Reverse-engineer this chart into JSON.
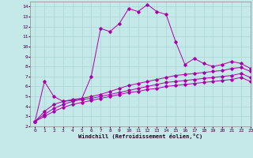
{
  "xlabel": "Windchill (Refroidissement éolien,°C)",
  "bg_color": "#c5e8e8",
  "grid_color": "#b0d8d8",
  "line_color": "#aa00aa",
  "xlim": [
    -0.5,
    23
  ],
  "ylim": [
    2,
    14.5
  ],
  "xticks": [
    0,
    1,
    2,
    3,
    4,
    5,
    6,
    7,
    8,
    9,
    10,
    11,
    12,
    13,
    14,
    15,
    16,
    17,
    18,
    19,
    20,
    21,
    22,
    23
  ],
  "yticks": [
    2,
    3,
    4,
    5,
    6,
    7,
    8,
    9,
    10,
    11,
    12,
    13,
    14
  ],
  "series": [
    {
      "x": [
        0,
        1,
        2,
        3,
        4,
        5,
        6,
        7,
        8,
        9,
        10,
        11,
        12,
        13,
        14,
        15,
        16,
        17,
        18,
        19,
        20,
        21,
        22,
        23
      ],
      "y": [
        2.5,
        6.5,
        5.0,
        4.5,
        4.6,
        4.8,
        7.0,
        11.8,
        11.5,
        12.3,
        13.8,
        13.5,
        14.2,
        13.5,
        13.2,
        10.5,
        8.2,
        8.8,
        8.3,
        8.0,
        8.2,
        8.5,
        8.3,
        7.8
      ],
      "markers": true
    },
    {
      "x": [
        0,
        1,
        2,
        3,
        4,
        5,
        6,
        7,
        8,
        9,
        10,
        11,
        12,
        13,
        14,
        15,
        16,
        17,
        18,
        19,
        20,
        21,
        22,
        23
      ],
      "y": [
        2.5,
        3.5,
        4.2,
        4.5,
        4.7,
        4.8,
        5.0,
        5.2,
        5.5,
        5.8,
        6.1,
        6.3,
        6.5,
        6.7,
        6.9,
        7.1,
        7.2,
        7.3,
        7.4,
        7.5,
        7.6,
        7.8,
        7.9,
        7.5
      ],
      "markers": true
    },
    {
      "x": [
        0,
        1,
        2,
        3,
        4,
        5,
        6,
        7,
        8,
        9,
        10,
        11,
        12,
        13,
        14,
        15,
        16,
        17,
        18,
        19,
        20,
        21,
        22,
        23
      ],
      "y": [
        2.5,
        3.2,
        3.8,
        4.2,
        4.5,
        4.7,
        4.8,
        5.0,
        5.2,
        5.4,
        5.6,
        5.8,
        6.0,
        6.2,
        6.4,
        6.5,
        6.6,
        6.7,
        6.8,
        6.9,
        7.0,
        7.1,
        7.3,
        6.9
      ],
      "markers": true
    },
    {
      "x": [
        0,
        1,
        2,
        3,
        4,
        5,
        6,
        7,
        8,
        9,
        10,
        11,
        12,
        13,
        14,
        15,
        16,
        17,
        18,
        19,
        20,
        21,
        22,
        23
      ],
      "y": [
        2.5,
        3.0,
        3.5,
        3.9,
        4.2,
        4.4,
        4.6,
        4.8,
        5.0,
        5.2,
        5.4,
        5.5,
        5.7,
        5.8,
        6.0,
        6.1,
        6.2,
        6.3,
        6.4,
        6.5,
        6.6,
        6.7,
        6.9,
        6.5
      ],
      "markers": true
    }
  ]
}
